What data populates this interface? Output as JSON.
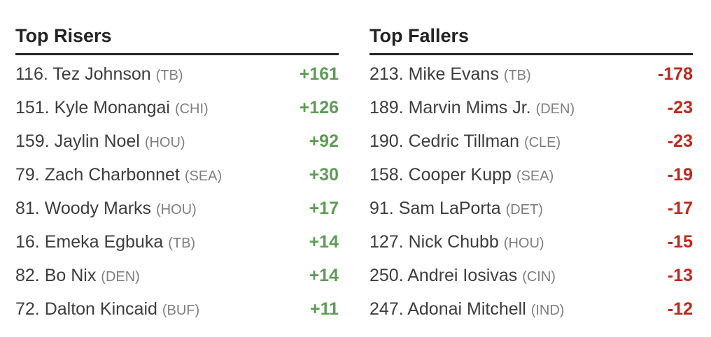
{
  "colors": {
    "riser_green": "#5e9c56",
    "faller_red": "#c1271b",
    "heading": "#232323",
    "player_text": "#3d3d3d",
    "team_text": "#7e7e7e"
  },
  "sections": [
    {
      "title": "Top Risers",
      "type": "riser",
      "rows": [
        {
          "rank": "116",
          "name": "Tez Johnson",
          "team": "TB",
          "change": "+161"
        },
        {
          "rank": "151",
          "name": "Kyle Monangai",
          "team": "CHI",
          "change": "+126"
        },
        {
          "rank": "159",
          "name": "Jaylin Noel",
          "team": "HOU",
          "change": "+92"
        },
        {
          "rank": "79",
          "name": "Zach Charbonnet",
          "team": "SEA",
          "change": "+30"
        },
        {
          "rank": "81",
          "name": "Woody Marks",
          "team": "HOU",
          "change": "+17"
        },
        {
          "rank": "16",
          "name": "Emeka Egbuka",
          "team": "TB",
          "change": "+14"
        },
        {
          "rank": "82",
          "name": "Bo Nix",
          "team": "DEN",
          "change": "+14"
        },
        {
          "rank": "72",
          "name": "Dalton Kincaid",
          "team": "BUF",
          "change": "+11"
        }
      ]
    },
    {
      "title": "Top Fallers",
      "type": "faller",
      "rows": [
        {
          "rank": "213",
          "name": "Mike Evans",
          "team": "TB",
          "change": "-178"
        },
        {
          "rank": "189",
          "name": "Marvin Mims Jr.",
          "team": "DEN",
          "change": "-23"
        },
        {
          "rank": "190",
          "name": "Cedric Tillman",
          "team": "CLE",
          "change": "-23"
        },
        {
          "rank": "158",
          "name": "Cooper Kupp",
          "team": "SEA",
          "change": "-19"
        },
        {
          "rank": "91",
          "name": "Sam LaPorta",
          "team": "DET",
          "change": "-17"
        },
        {
          "rank": "127",
          "name": "Nick Chubb",
          "team": "HOU",
          "change": "-15"
        },
        {
          "rank": "250",
          "name": "Andrei Iosivas",
          "team": "CIN",
          "change": "-13"
        },
        {
          "rank": "247",
          "name": "Adonai Mitchell",
          "team": "IND",
          "change": "-12"
        }
      ]
    }
  ],
  "chart_data": [
    {
      "type": "table",
      "title": "Top Risers",
      "columns": [
        "rank",
        "player",
        "team",
        "change"
      ],
      "rows": [
        [
          116,
          "Tez Johnson",
          "TB",
          161
        ],
        [
          151,
          "Kyle Monangai",
          "CHI",
          126
        ],
        [
          159,
          "Jaylin Noel",
          "HOU",
          92
        ],
        [
          79,
          "Zach Charbonnet",
          "SEA",
          30
        ],
        [
          81,
          "Woody Marks",
          "HOU",
          17
        ],
        [
          16,
          "Emeka Egbuka",
          "TB",
          14
        ],
        [
          82,
          "Bo Nix",
          "DEN",
          14
        ],
        [
          72,
          "Dalton Kincaid",
          "BUF",
          11
        ]
      ]
    },
    {
      "type": "table",
      "title": "Top Fallers",
      "columns": [
        "rank",
        "player",
        "team",
        "change"
      ],
      "rows": [
        [
          213,
          "Mike Evans",
          "TB",
          -178
        ],
        [
          189,
          "Marvin Mims Jr.",
          "DEN",
          -23
        ],
        [
          190,
          "Cedric Tillman",
          "CLE",
          -23
        ],
        [
          158,
          "Cooper Kupp",
          "SEA",
          -19
        ],
        [
          91,
          "Sam LaPorta",
          "DET",
          -17
        ],
        [
          127,
          "Nick Chubb",
          "HOU",
          -15
        ],
        [
          250,
          "Andrei Iosivas",
          "CIN",
          -13
        ],
        [
          247,
          "Adonai Mitchell",
          "IND",
          -12
        ]
      ]
    }
  ]
}
